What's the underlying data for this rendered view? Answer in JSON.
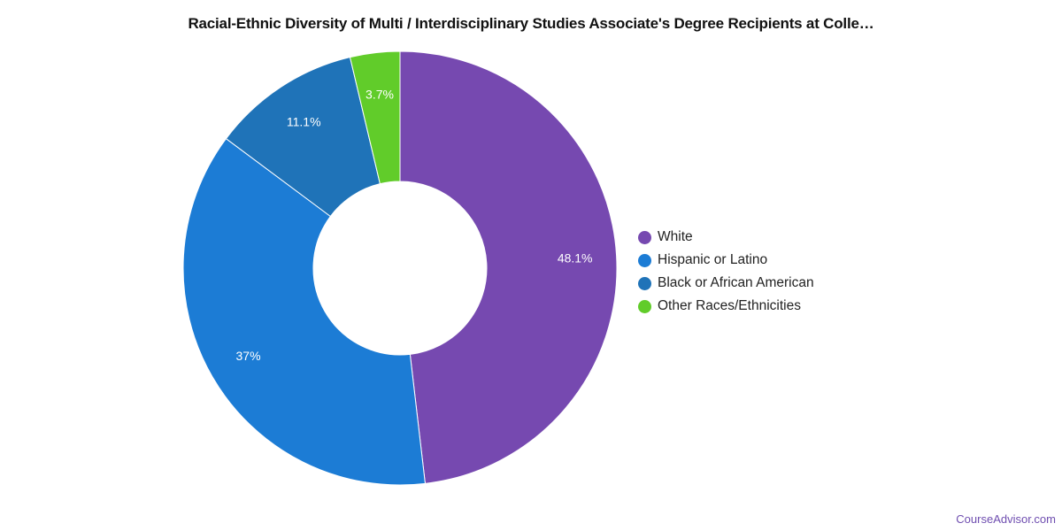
{
  "chart_data": {
    "type": "pie",
    "donut": true,
    "title": "Racial-Ethnic Diversity of Multi / Interdisciplinary Studies Associate's Degree Recipients at Colle…",
    "slices": [
      {
        "label": "White",
        "value": 48.1,
        "display": "48.1%",
        "color": "#7649b0"
      },
      {
        "label": "Hispanic or Latino",
        "value": 37.0,
        "display": "37%",
        "color": "#1c7cd5"
      },
      {
        "label": "Black or African American",
        "value": 11.1,
        "display": "11.1%",
        "color": "#1f73b8"
      },
      {
        "label": "Other Races/Ethnicities",
        "value": 3.7,
        "display": "3.7%",
        "color": "#61cc2a"
      }
    ],
    "legend_position": "right"
  },
  "credit": "CourseAdvisor.com"
}
